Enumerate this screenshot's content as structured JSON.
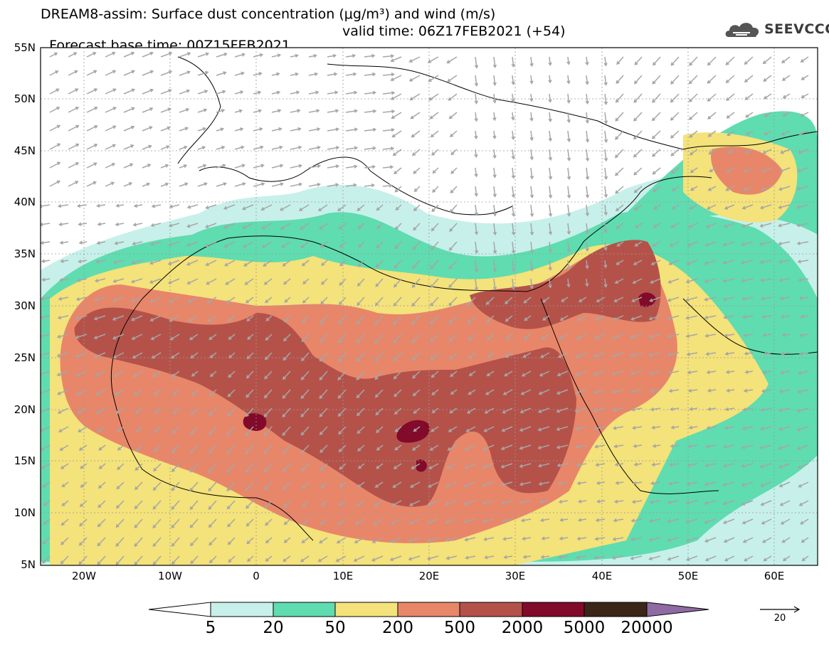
{
  "header": {
    "title_line1": "DREAM8-assim: Surface dust concentration (μg/m³) and wind (m/s)",
    "base_time_label": "Forecast base time: 00Z15FEB2021",
    "valid_time_label": "valid time: 06Z17FEB2021 (+54)"
  },
  "logo": {
    "text": "SEEVCCC",
    "icon": "cloud-icon"
  },
  "map": {
    "lon_range": [
      -25,
      65
    ],
    "lat_range": [
      5,
      55
    ],
    "lat_labels": [
      "55N",
      "50N",
      "45N",
      "40N",
      "35N",
      "30N",
      "25N",
      "20N",
      "15N",
      "10N",
      "5N"
    ],
    "lon_labels": [
      "20W",
      "10W",
      "0",
      "10E",
      "20E",
      "30E",
      "40E",
      "50E",
      "60E"
    ],
    "grid": true,
    "field": "dust concentration with wind vectors"
  },
  "colorbar": {
    "levels": [
      "5",
      "20",
      "50",
      "200",
      "500",
      "2000",
      "5000",
      "20000"
    ],
    "colors": [
      "#ffffff",
      "#c7f0ea",
      "#5fdcb0",
      "#f4e27a",
      "#e8866a",
      "#b4524a",
      "#820a2a",
      "#3c2617",
      "#8f6aa3"
    ]
  },
  "wind_reference": {
    "value": "20",
    "icon": "arrow-right-icon"
  },
  "colors": {
    "arrow": "#a6a6a6",
    "coast": "#000000",
    "grid": "#9a9a9a"
  }
}
